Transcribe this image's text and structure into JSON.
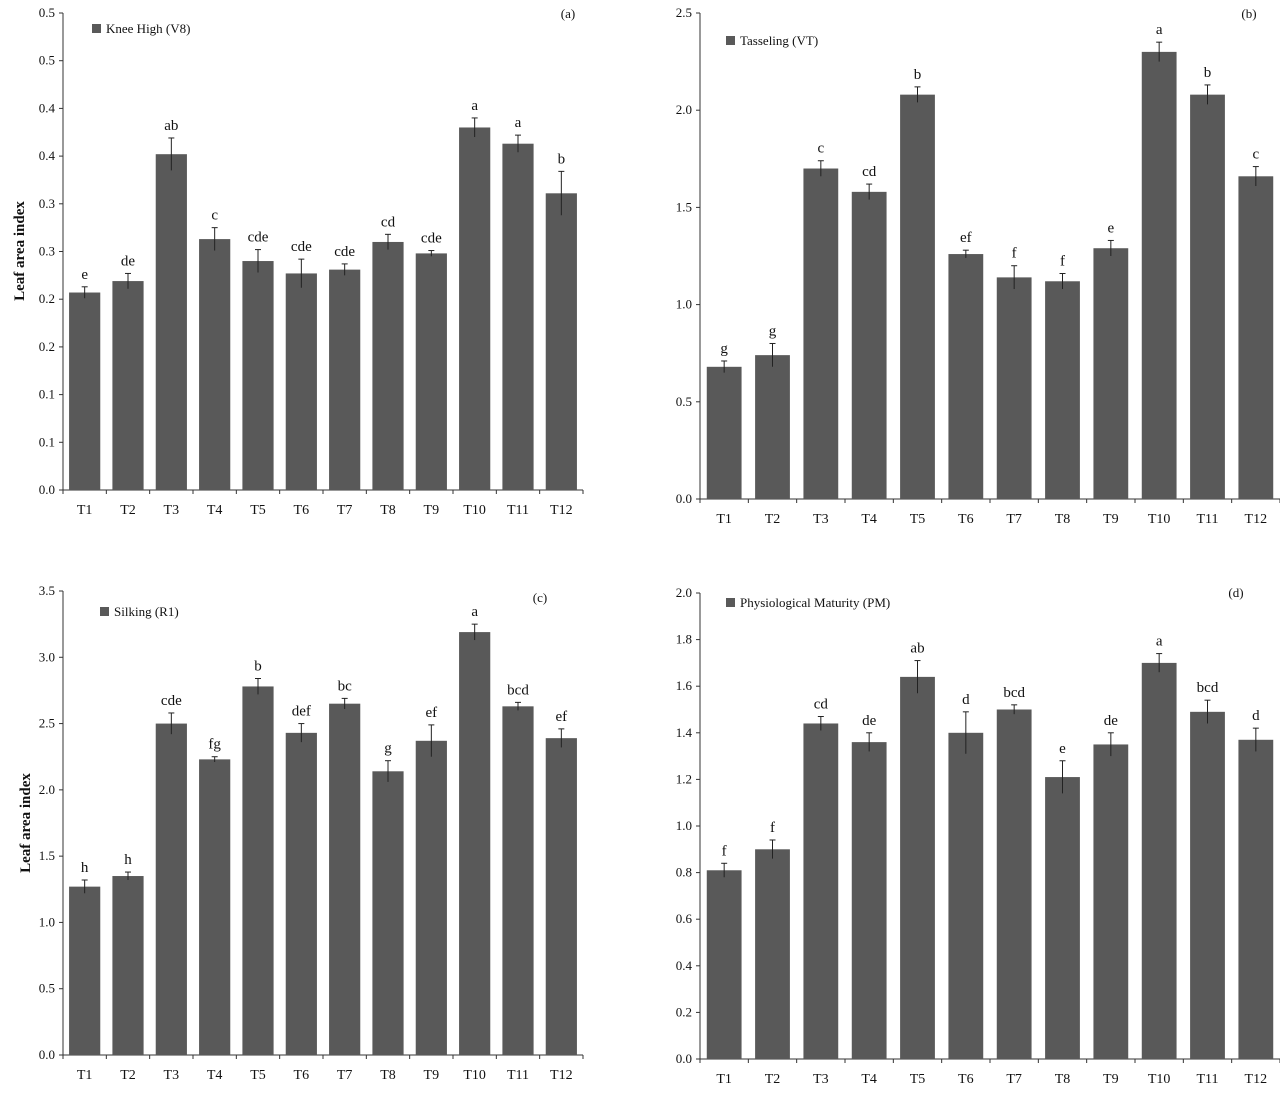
{
  "colors": {
    "bar": "#595959",
    "axis": "#333333",
    "text": "#111111",
    "error": "#222222"
  },
  "chart_data": [
    {
      "type": "bar",
      "panel_label": "(a)",
      "legend": "Knee High (V8)",
      "legend_placement": "top-left",
      "ylabel": "Leaf area index",
      "xlabel": "",
      "grid": false,
      "ylim": [
        0,
        0.5
      ],
      "ytick_values": [
        0,
        0.05,
        0.1,
        0.15,
        0.2,
        0.25,
        0.3,
        0.35,
        0.4,
        0.45,
        0.5
      ],
      "ytick_labels": [
        "0.0",
        "0.1",
        "0.1",
        "0.2",
        "0.2",
        "0.3",
        "0.3",
        "0.4",
        "0.4",
        "0.5",
        "0.5"
      ],
      "categories": [
        "T1",
        "T2",
        "T3",
        "T4",
        "T5",
        "T6",
        "T7",
        "T8",
        "T9",
        "T10",
        "T11",
        "T12"
      ],
      "series": [
        {
          "values": [
            0.207,
            0.219,
            0.352,
            0.263,
            0.24,
            0.227,
            0.231,
            0.26,
            0.248,
            0.38,
            0.363,
            0.311
          ],
          "errors": [
            0.006,
            0.008,
            0.017,
            0.012,
            0.012,
            0.015,
            0.006,
            0.008,
            0.003,
            0.01,
            0.009,
            0.023
          ],
          "labels": [
            "e",
            "de",
            "ab",
            "c",
            "cde",
            "cde",
            "cde",
            "cd",
            "cde",
            "a",
            "a",
            "b"
          ]
        }
      ]
    },
    {
      "type": "bar",
      "panel_label": "(b)",
      "legend": "Tasseling (VT)",
      "legend_placement": "top-left",
      "ylabel": "",
      "xlabel": "",
      "grid": false,
      "ylim": [
        0,
        2.5
      ],
      "ytick_values": [
        0,
        0.5,
        1.0,
        1.5,
        2.0,
        2.5
      ],
      "ytick_labels": [
        "0.0",
        "0.5",
        "1.0",
        "1.5",
        "2.0",
        "2.5"
      ],
      "categories": [
        "T1",
        "T2",
        "T3",
        "T4",
        "T5",
        "T6",
        "T7",
        "T8",
        "T9",
        "T10",
        "T11",
        "T12"
      ],
      "series": [
        {
          "values": [
            0.68,
            0.74,
            1.7,
            1.58,
            2.08,
            1.26,
            1.14,
            1.12,
            1.29,
            2.3,
            2.08,
            1.66
          ],
          "errors": [
            0.03,
            0.06,
            0.04,
            0.04,
            0.04,
            0.02,
            0.06,
            0.04,
            0.04,
            0.05,
            0.05,
            0.05
          ],
          "labels": [
            "g",
            "g",
            "c",
            "cd",
            "b",
            "ef",
            "f",
            "f",
            "e",
            "a",
            "b",
            "c"
          ]
        }
      ]
    },
    {
      "type": "bar",
      "panel_label": "(c)",
      "legend": "Silking (R1)",
      "legend_placement": "top-left",
      "ylabel": "Leaf area index",
      "xlabel": "",
      "grid": false,
      "ylim": [
        0,
        3.5
      ],
      "ytick_values": [
        0,
        0.5,
        1.0,
        1.5,
        2.0,
        2.5,
        3.0,
        3.5
      ],
      "ytick_labels": [
        "0.0",
        "0.5",
        "1.0",
        "1.5",
        "2.0",
        "2.5",
        "3.0",
        "3.5"
      ],
      "categories": [
        "T1",
        "T2",
        "T3",
        "T4",
        "T5",
        "T6",
        "T7",
        "T8",
        "T9",
        "T10",
        "T11",
        "T12"
      ],
      "series": [
        {
          "values": [
            1.27,
            1.35,
            2.5,
            2.23,
            2.78,
            2.43,
            2.65,
            2.14,
            2.37,
            3.19,
            2.63,
            2.39
          ],
          "errors": [
            0.05,
            0.03,
            0.08,
            0.02,
            0.06,
            0.07,
            0.04,
            0.08,
            0.12,
            0.06,
            0.03,
            0.07
          ],
          "labels": [
            "h",
            "h",
            "cde",
            "fg",
            "b",
            "def",
            "bc",
            "g",
            "ef",
            "a",
            "bcd",
            "ef"
          ]
        }
      ]
    },
    {
      "type": "bar",
      "panel_label": "(d)",
      "legend": "Physiological Maturity (PM)",
      "legend_placement": "top-left",
      "ylabel": "",
      "xlabel": "",
      "grid": false,
      "ylim": [
        0,
        2.0
      ],
      "ytick_values": [
        0,
        0.2,
        0.4,
        0.6,
        0.8,
        1.0,
        1.2,
        1.4,
        1.6,
        1.8,
        2.0
      ],
      "ytick_labels": [
        "0.0",
        "0.2",
        "0.4",
        "0.6",
        "0.8",
        "1.0",
        "1.2",
        "1.4",
        "1.6",
        "1.8",
        "2.0"
      ],
      "categories": [
        "T1",
        "T2",
        "T3",
        "T4",
        "T5",
        "T6",
        "T7",
        "T8",
        "T9",
        "T10",
        "T11",
        "T12"
      ],
      "series": [
        {
          "values": [
            0.81,
            0.9,
            1.44,
            1.36,
            1.64,
            1.4,
            1.5,
            1.21,
            1.35,
            1.7,
            1.49,
            1.37
          ],
          "errors": [
            0.03,
            0.04,
            0.03,
            0.04,
            0.07,
            0.09,
            0.02,
            0.07,
            0.05,
            0.04,
            0.05,
            0.05
          ],
          "labels": [
            "f",
            "f",
            "cd",
            "de",
            "ab",
            "d",
            "bcd",
            "e",
            "de",
            "a",
            "bcd",
            "d"
          ]
        }
      ]
    }
  ]
}
